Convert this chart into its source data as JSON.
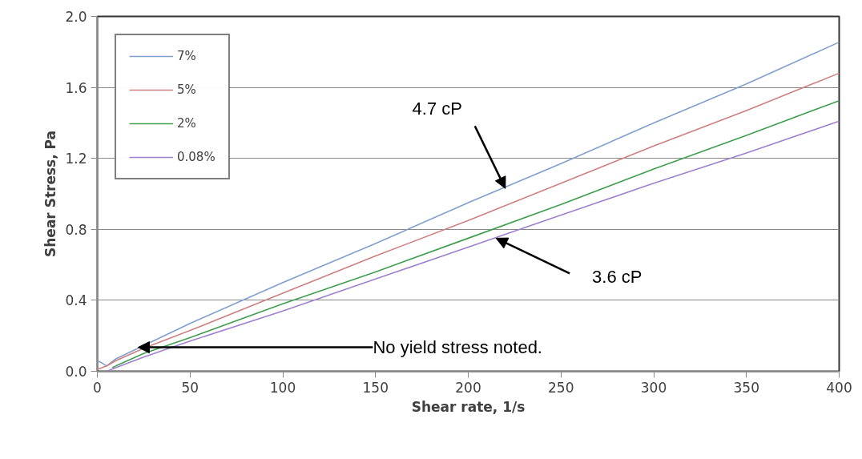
{
  "chart_data": {
    "type": "line",
    "xlabel": "Shear rate, 1/s",
    "ylabel": "Shear Stress, Pa",
    "xlim": [
      0,
      400
    ],
    "xticks": [
      0,
      50,
      100,
      150,
      200,
      250,
      300,
      350,
      400
    ],
    "ylim": [
      0,
      2.0
    ],
    "yticks": [
      {
        "value": 0,
        "label": "0.0"
      },
      0.4,
      0.8,
      1.2,
      1.6,
      {
        "value": 2.0,
        "label": "2.0"
      }
    ],
    "grid": "y",
    "legend": "top left",
    "line_style": "solid",
    "marker": "none",
    "series": [
      {
        "name": "7%",
        "color": "#7f9fcf",
        "x": [
          0,
          2,
          5,
          10,
          50,
          100,
          150,
          200,
          250,
          300,
          350,
          400
        ],
        "values": [
          0.06,
          0.05,
          0.03,
          0.07,
          0.27,
          0.5,
          0.72,
          0.95,
          1.17,
          1.4,
          1.62,
          1.855
        ]
      },
      {
        "name": "5%",
        "color": "#cf7f7f",
        "x": [
          0,
          5,
          10,
          25,
          50,
          100,
          150,
          200,
          250,
          300,
          350,
          400
        ],
        "values": [
          0.01,
          0.03,
          0.06,
          0.13,
          0.23,
          0.44,
          0.65,
          0.85,
          1.06,
          1.27,
          1.47,
          1.68
        ]
      },
      {
        "name": "2%",
        "color": "#3f9f4f",
        "x": [
          8,
          10,
          25,
          50,
          100,
          150,
          200,
          250,
          300,
          350,
          400
        ],
        "values": [
          0.02,
          0.03,
          0.1,
          0.19,
          0.38,
          0.56,
          0.75,
          0.94,
          1.14,
          1.33,
          1.525
        ]
      },
      {
        "name": "0.08%",
        "color": "#9f7fcf",
        "x": [
          5,
          10,
          25,
          50,
          100,
          150,
          200,
          250,
          300,
          350,
          400
        ],
        "values": [
          0.0,
          0.02,
          0.08,
          0.17,
          0.34,
          0.52,
          0.7,
          0.88,
          1.06,
          1.23,
          1.41
        ]
      }
    ],
    "annotations": [
      {
        "text": "4.7 cP",
        "x": 220,
        "y": 1.03
      },
      {
        "text": "3.6 cP",
        "x": 215,
        "y": 0.75
      },
      {
        "text": "No yield stress noted.",
        "x": 22,
        "y": 0.135
      }
    ]
  }
}
